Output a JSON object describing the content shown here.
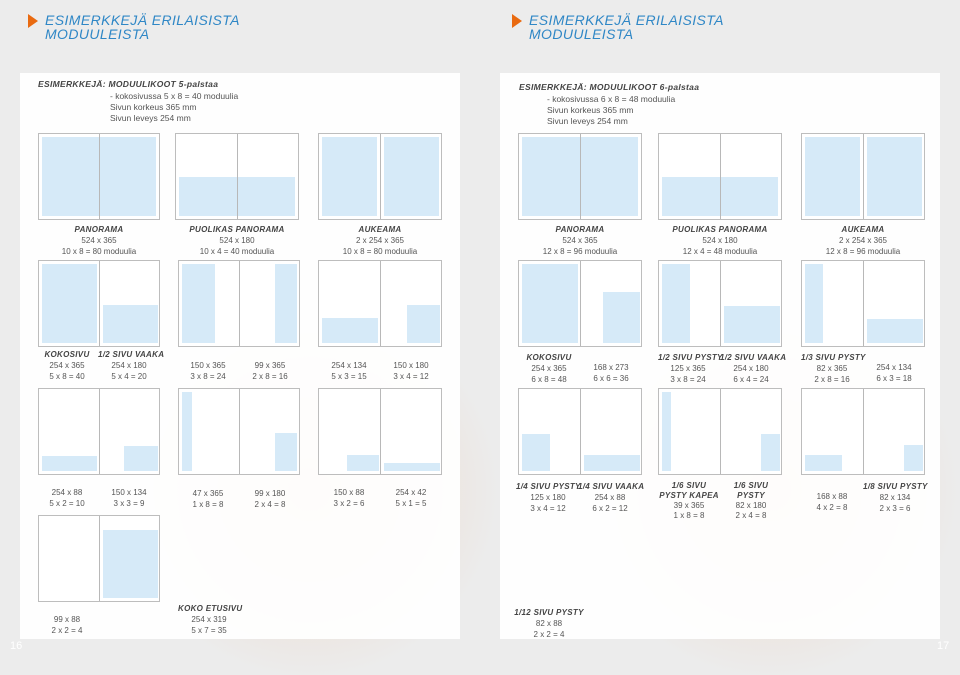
{
  "left": {
    "header": [
      "ESIMERKKEJÄ ERILAISISTA",
      "MODUULEISTA"
    ],
    "intro": [
      "ESIMERKKEJÄ: MODUULIKOOT 5-palstaa",
      "- kokosivussa 5 x 8 = 40 moduulia",
      "Sivun korkeus 365 mm",
      "Sivun leveys 254 mm"
    ],
    "labels": [
      [
        "PANORAMA",
        "524 x 365",
        "10 x 8 = 80 moduulia"
      ],
      [
        "PUOLIKAS PANORAMA",
        "524 x 180",
        "10 x 4 = 40 moduulia"
      ],
      [
        "AUKEAMA",
        "2 x 254 x 365",
        "10 x 8 = 80 moduulia"
      ],
      [
        "KOKOSIVU",
        "254 x 365",
        "5 x 8 = 40"
      ],
      [
        "1/2 SIVU VAAKA",
        "254 x 180",
        "5 x 4 = 20"
      ],
      [
        "150 x 365",
        "3 x 8 = 24"
      ],
      [
        "99 x 365",
        "2 x 8 = 16"
      ],
      [
        "254 x 134",
        "5 x 3 = 15"
      ],
      [
        "150 x 180",
        "3 x 4 = 12"
      ],
      [
        "254 x 88",
        "5 x 2 = 10"
      ],
      [
        "150 x 134",
        "3 x 3 = 9"
      ],
      [
        "47 x 365",
        "1 x 8 = 8"
      ],
      [
        "99 x 180",
        "2 x 4 = 8"
      ],
      [
        "150 x 88",
        "3 x 2 = 6"
      ],
      [
        "254 x 42",
        "5 x 1 = 5"
      ],
      [
        "99 x 88",
        "2 x 2 = 4"
      ],
      [
        "KOKO ETUSIVU",
        "254 x 319",
        "5 x 7 = 35"
      ]
    ],
    "page_number": "16"
  },
  "right": {
    "header": [
      "ESIMERKKEJÄ ERILAISISTA",
      "MODUULEISTA"
    ],
    "intro": [
      "ESIMERKKEJÄ: MODUULIKOOT 6-palstaa",
      "- kokosivussa 6 x 8 = 48 moduulia",
      "Sivun korkeus 365 mm",
      "Sivun leveys 254 mm"
    ],
    "labels": [
      [
        "PANORAMA",
        "524 x 365",
        "12 x 8 = 96 moduulia"
      ],
      [
        "PUOLIKAS PANORAMA",
        "524 x 180",
        "12 x 4 = 48 moduulia"
      ],
      [
        "AUKEAMA",
        "2 x 254 x 365",
        "12 x 8 = 96 moduulia"
      ],
      [
        "KOKOSIVU",
        "254 x 365",
        "6 x 8 = 48"
      ],
      [
        "168 x 273",
        "6 x 6 = 36"
      ],
      [
        "1/2 SIVU PYSTY",
        "125 x 365",
        "3 x 8 = 24"
      ],
      [
        "1/2 SIVU VAAKA",
        "254 x 180",
        "6 x 4 = 24"
      ],
      [
        "1/3 SIVU PYSTY",
        "82 x 365",
        "2 x 8 = 16"
      ],
      [
        "254 x 134",
        "6 x 3 = 18"
      ],
      [
        "1/4 SIVU PYSTY",
        "125 x 180",
        "3 x 4 = 12"
      ],
      [
        "1/4 SIVU VAAKA",
        "254 x 88",
        "6 x 2 = 12"
      ],
      [
        "1/6 SIVU",
        "PYSTY KAPEA",
        "39 x 365",
        "1 x 8 = 8"
      ],
      [
        "1/6 SIVU",
        "PYSTY",
        "82 x 180",
        "2 x 4 = 8"
      ],
      [
        "168 x 88",
        "4 x 2 = 8"
      ],
      [
        "1/8 SIVU PYSTY",
        "82 x 134",
        "2 x 3 = 6"
      ],
      [
        "1/12 SIVU PYSTY",
        "82 x 88",
        "2 x 2 = 4"
      ]
    ],
    "page_number": "17"
  }
}
